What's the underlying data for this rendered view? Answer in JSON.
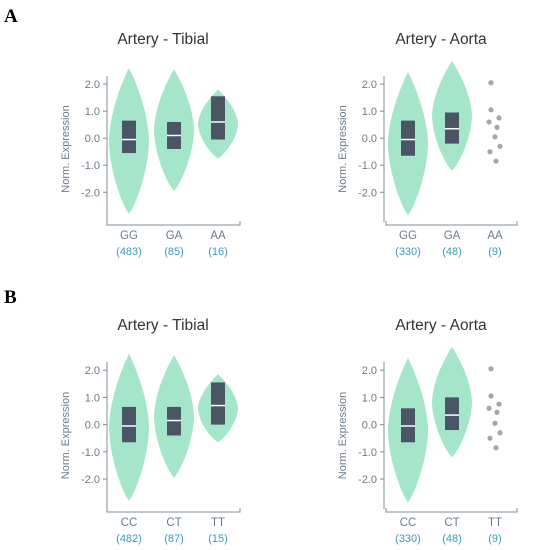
{
  "panel_labels": [
    "A",
    "B"
  ],
  "colors": {
    "violin_fill": "#a5e6cb",
    "box_fill": "#4a5565",
    "median_line": "#ffffff",
    "point_fill": "#a6a6a6",
    "axis_color": "#7f8c99",
    "axis_text": "#6b7a89",
    "count_text": "#3a9cc2",
    "title_text": "#333333"
  },
  "chart_data": [
    {
      "panel": "A",
      "type": "violin",
      "title": "Artery - Tibial",
      "ylabel": "Norm. Expression",
      "yticks": [
        "2.0",
        "1.0",
        "0.0",
        "-1.0",
        "-2.0"
      ],
      "ylim": [
        -3.1,
        2.3
      ],
      "categories": [
        {
          "label": "GG",
          "count": "(483)",
          "display": "violin",
          "violin_range": [
            -2.8,
            2.6
          ],
          "violin_widest": 0.0,
          "box": [
            -0.55,
            0.65
          ],
          "median": -0.05
        },
        {
          "label": "GA",
          "count": "(85)",
          "display": "violin",
          "violin_range": [
            -1.95,
            2.55
          ],
          "violin_widest": 0.1,
          "box": [
            -0.4,
            0.6
          ],
          "median": 0.1
        },
        {
          "label": "AA",
          "count": "(16)",
          "display": "violin",
          "violin_range": [
            -0.75,
            1.8
          ],
          "violin_widest": 0.7,
          "box": [
            -0.05,
            1.55
          ],
          "median": 0.6
        }
      ]
    },
    {
      "panel": "A",
      "type": "violin",
      "title": "Artery - Aorta",
      "ylabel": "Norm. Expression",
      "yticks": [
        "2.0",
        "1.0",
        "0.0",
        "-1.0",
        "-2.0"
      ],
      "ylim": [
        -3.1,
        2.3
      ],
      "categories": [
        {
          "label": "GG",
          "count": "(330)",
          "display": "violin",
          "violin_range": [
            -2.85,
            2.45
          ],
          "violin_widest": 0.0,
          "box": [
            -0.65,
            0.65
          ],
          "median": -0.05
        },
        {
          "label": "GA",
          "count": "(48)",
          "display": "violin",
          "violin_range": [
            -1.2,
            2.85
          ],
          "violin_widest": 0.4,
          "box": [
            -0.2,
            0.95
          ],
          "median": 0.35
        },
        {
          "label": "AA",
          "count": "(9)",
          "display": "points",
          "points": [
            2.05,
            1.05,
            0.75,
            0.6,
            0.4,
            0.05,
            -0.3,
            -0.5,
            -0.85
          ]
        }
      ]
    },
    {
      "panel": "B",
      "type": "violin",
      "title": "Artery - Tibial",
      "ylabel": "Norm. Expression",
      "yticks": [
        "2.0",
        "1.0",
        "0.0",
        "-1.0",
        "-2.0"
      ],
      "ylim": [
        -3.1,
        2.3
      ],
      "categories": [
        {
          "label": "CC",
          "count": "(482)",
          "display": "violin",
          "violin_range": [
            -2.8,
            2.6
          ],
          "violin_widest": 0.0,
          "box": [
            -0.65,
            0.65
          ],
          "median": -0.05
        },
        {
          "label": "CT",
          "count": "(87)",
          "display": "violin",
          "violin_range": [
            -1.95,
            2.55
          ],
          "violin_widest": 0.1,
          "box": [
            -0.4,
            0.65
          ],
          "median": 0.15
        },
        {
          "label": "TT",
          "count": "(15)",
          "display": "violin",
          "violin_range": [
            -0.65,
            1.85
          ],
          "violin_widest": 0.8,
          "box": [
            0.0,
            1.55
          ],
          "median": 0.7
        }
      ]
    },
    {
      "panel": "B",
      "type": "violin",
      "title": "Artery - Aorta",
      "ylabel": "Norm. Expression",
      "yticks": [
        "2.0",
        "1.0",
        "0.0",
        "-1.0",
        "-2.0"
      ],
      "ylim": [
        -3.1,
        2.3
      ],
      "categories": [
        {
          "label": "CC",
          "count": "(330)",
          "display": "violin",
          "violin_range": [
            -2.85,
            2.45
          ],
          "violin_widest": 0.0,
          "box": [
            -0.65,
            0.6
          ],
          "median": -0.05
        },
        {
          "label": "CT",
          "count": "(48)",
          "display": "violin",
          "violin_range": [
            -1.2,
            2.85
          ],
          "violin_widest": 0.4,
          "box": [
            -0.2,
            1.0
          ],
          "median": 0.35
        },
        {
          "label": "TT",
          "count": "(9)",
          "display": "points",
          "points": [
            2.05,
            1.05,
            0.75,
            0.6,
            0.45,
            0.05,
            -0.3,
            -0.5,
            -0.85
          ]
        }
      ]
    }
  ]
}
